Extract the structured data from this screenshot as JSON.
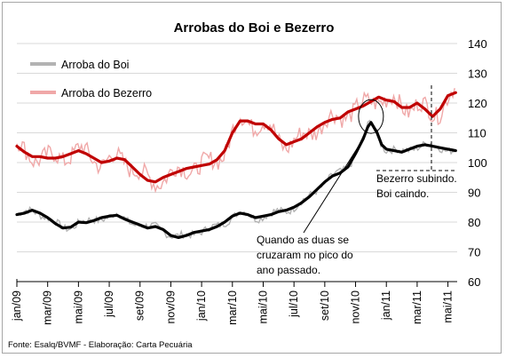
{
  "chart_data": {
    "type": "line",
    "title": "Arrobas do Boi e Bezerro",
    "source": "Fonte: Esalq/BVMF - Elaboração: Carta Pecuária",
    "ylim": [
      60,
      140
    ],
    "yticks": [
      "140",
      "130",
      "120",
      "110",
      "100",
      "90",
      "80",
      "70",
      "60"
    ],
    "ytick_values": [
      140,
      130,
      120,
      110,
      100,
      90,
      80,
      70,
      60
    ],
    "xtick_labels": [
      "jan/09",
      "mar/09",
      "mai/09",
      "jul/09",
      "set/09",
      "nov/09",
      "jan/10",
      "mar/10",
      "mai/10",
      "jul/10",
      "set/10",
      "nov/10",
      "jan/11",
      "mar/11",
      "mai/11"
    ],
    "xtick_months": [
      0,
      2,
      4,
      6,
      8,
      10,
      12,
      14,
      16,
      18,
      20,
      22,
      24,
      26,
      28
    ],
    "x_unit": "months since jan/09",
    "xlim": [
      0,
      28.6
    ],
    "legend": {
      "placement": "top-left"
    },
    "annotations": [
      {
        "text_lines": [
          "Quando as duas se",
          "cruzaram no pico do",
          "ano passado."
        ]
      },
      {
        "text_lines": [
          "Bezerro subindo.",
          "Boi caindo."
        ]
      }
    ],
    "series": [
      {
        "name": "Arroba do Boi",
        "color": "#000000",
        "raw_color": "#b3b3b3",
        "x": [
          0,
          0.5,
          1,
          1.5,
          2,
          2.5,
          3,
          3.5,
          4,
          4.5,
          5,
          5.5,
          6,
          6.5,
          7,
          7.5,
          8,
          8.5,
          9,
          9.5,
          10,
          10.5,
          11,
          11.5,
          12,
          12.5,
          13,
          13.5,
          14,
          14.5,
          15,
          15.5,
          16,
          16.5,
          17,
          17.5,
          18,
          18.5,
          19,
          19.5,
          20,
          20.5,
          21,
          21.5,
          22,
          22.5,
          22.8,
          23,
          23.4,
          23.7,
          24,
          24.5,
          25,
          25.5,
          26,
          26.5,
          27,
          27.5,
          28,
          28.5
        ],
        "values": [
          82.5,
          83,
          84,
          83,
          81.5,
          79.5,
          78,
          78.3,
          80,
          79.8,
          80.5,
          81.5,
          82,
          82.3,
          81,
          80,
          79,
          78,
          78.5,
          77.5,
          75.5,
          74.8,
          75.5,
          76.5,
          77,
          77.5,
          78.5,
          80,
          82,
          83,
          82.5,
          81.5,
          82,
          82.5,
          83.5,
          84,
          85,
          86.5,
          88.5,
          91,
          93.5,
          95.5,
          96.5,
          98.5,
          103,
          108,
          112,
          113.5,
          110,
          106,
          104.5,
          104,
          103.5,
          104.5,
          105.5,
          106,
          105.5,
          105,
          104.5,
          104
        ]
      },
      {
        "name": "Arroba do Bezerro",
        "color": "#c00000",
        "raw_color": "#f0a8a8",
        "x": [
          0,
          0.5,
          1,
          1.5,
          2,
          2.5,
          3,
          3.5,
          4,
          4.5,
          5,
          5.5,
          6,
          6.5,
          7,
          7.5,
          8,
          8.5,
          9,
          9.5,
          10,
          10.5,
          11,
          11.5,
          12,
          12.5,
          13,
          13.5,
          14,
          14.5,
          15,
          15.5,
          16,
          16.5,
          17,
          17.5,
          18,
          18.5,
          19,
          19.5,
          20,
          20.5,
          21,
          21.5,
          22,
          22.5,
          23,
          23.5,
          24,
          24.5,
          25,
          25.5,
          26,
          26.5,
          27,
          27.5,
          28,
          28.5
        ],
        "values": [
          105.5,
          103.5,
          102,
          102,
          101.5,
          101.5,
          102,
          103,
          104,
          103,
          101.5,
          100,
          100.5,
          101.5,
          101,
          98.5,
          96,
          94,
          93.5,
          95,
          96,
          97,
          98,
          98.5,
          99,
          99.5,
          101,
          104,
          110,
          114,
          114,
          113,
          113,
          111,
          108,
          106,
          107,
          108,
          110,
          112,
          113.5,
          114.5,
          115,
          117,
          118,
          119,
          120.5,
          122,
          121,
          120.5,
          118.5,
          118.5,
          120,
          118,
          115.5,
          118,
          122.5,
          123.5
        ]
      }
    ]
  }
}
